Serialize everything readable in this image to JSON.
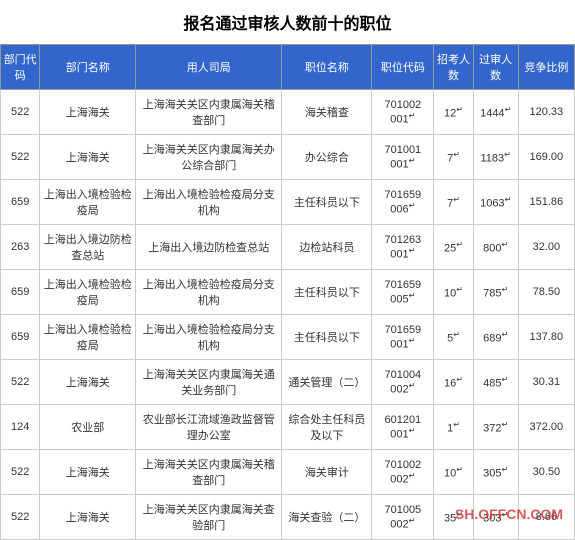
{
  "title": "报名通过审核人数前十的职位",
  "watermark": "SH.OFFCN.COM",
  "columns": [
    "部门代码",
    "部门名称",
    "用人司局",
    "职位名称",
    "职位代码",
    "招考人数",
    "过审人数",
    "竞争比例"
  ],
  "rows": [
    {
      "deptCode": "522",
      "deptName": "上海海关",
      "bureau": "上海海关关区内隶属海关稽查部门",
      "position": "海关稽查",
      "posCode": "701002001",
      "recruit": "12",
      "pass": "1444",
      "ratio": "120.33"
    },
    {
      "deptCode": "522",
      "deptName": "上海海关",
      "bureau": "上海海关关区内隶属海关办公综合部门",
      "position": "办公综合",
      "posCode": "701001001",
      "recruit": "7",
      "pass": "1183",
      "ratio": "169.00"
    },
    {
      "deptCode": "659",
      "deptName": "上海出入境检验检疫局",
      "bureau": "上海出入境检验检疫局分支机构",
      "position": "主任科员以下",
      "posCode": "701659006",
      "recruit": "7",
      "pass": "1063",
      "ratio": "151.86"
    },
    {
      "deptCode": "263",
      "deptName": "上海出入境边防检查总站",
      "bureau": "上海出入境边防检查总站",
      "position": "边检站科员",
      "posCode": "701263001",
      "recruit": "25",
      "pass": "800",
      "ratio": "32.00"
    },
    {
      "deptCode": "659",
      "deptName": "上海出入境检验检疫局",
      "bureau": "上海出入境检验检疫局分支机构",
      "position": "主任科员以下",
      "posCode": "701659005",
      "recruit": "10",
      "pass": "785",
      "ratio": "78.50"
    },
    {
      "deptCode": "659",
      "deptName": "上海出入境检验检疫局",
      "bureau": "上海出入境检验检疫局分支机构",
      "position": "主任科员以下",
      "posCode": "701659001",
      "recruit": "5",
      "pass": "689",
      "ratio": "137.80"
    },
    {
      "deptCode": "522",
      "deptName": "上海海关",
      "bureau": "上海海关关区内隶属海关通关业务部门",
      "position": "通关管理（二）",
      "posCode": "701004002",
      "recruit": "16",
      "pass": "485",
      "ratio": "30.31"
    },
    {
      "deptCode": "124",
      "deptName": "农业部",
      "bureau": "农业部长江流域渔政监督管理办公室",
      "position": "综合处主任科员及以下",
      "posCode": "601201001",
      "recruit": "1",
      "pass": "372",
      "ratio": "372.00"
    },
    {
      "deptCode": "522",
      "deptName": "上海海关",
      "bureau": "上海海关关区内隶属海关稽查部门",
      "position": "海关审计",
      "posCode": "701002002",
      "recruit": "10",
      "pass": "305",
      "ratio": "30.50"
    },
    {
      "deptCode": "522",
      "deptName": "上海海关",
      "bureau": "上海海关关区内隶属海关查验部门",
      "position": "海关查验（二）",
      "posCode": "701005002",
      "recruit": "35",
      "pass": "303",
      "ratio": "8.66"
    }
  ]
}
